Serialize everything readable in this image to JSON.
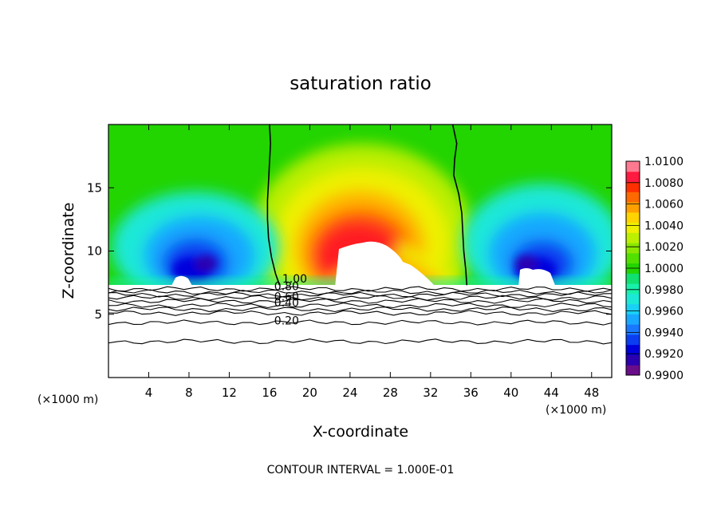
{
  "chart_data": {
    "type": "heatmap",
    "title": "saturation ratio",
    "xlabel": "X-coordinate",
    "ylabel": "Z-coordinate",
    "x_unit_left": "(×1000 m)",
    "x_unit_right": "(×1000 m)",
    "footer": "CONTOUR INTERVAL = 1.000E-01",
    "xlim": [
      0,
      50
    ],
    "ylim": [
      0,
      20
    ],
    "x_ticks": [
      4,
      8,
      12,
      16,
      20,
      24,
      28,
      32,
      36,
      40,
      44,
      48
    ],
    "y_ticks": [
      5,
      10,
      15
    ],
    "colorbar": {
      "min": 0.99,
      "max": 1.01,
      "step": 0.001,
      "labels": [
        "1.0100",
        "1.0080",
        "1.0060",
        "1.0040",
        "1.0020",
        "1.0000",
        "0.9980",
        "0.9960",
        "0.9940",
        "0.9920",
        "0.9900"
      ],
      "colors": [
        "#6a0d8a",
        "#2a00b0",
        "#0000dd",
        "#0a3ef0",
        "#1a78ff",
        "#19a8ff",
        "#19d0f5",
        "#1ce8d8",
        "#18f0aa",
        "#10e070",
        "#22d400",
        "#52e000",
        "#8ae800",
        "#bcf000",
        "#eef000",
        "#ffd400",
        "#ffa000",
        "#ff6a00",
        "#ff3000",
        "#ff1a40",
        "#ff7a90"
      ]
    },
    "contours": [
      {
        "label": "1.00",
        "label_x": 18.5,
        "label_y": 7.5,
        "line_x": [
          16.0,
          16.1,
          16.0,
          15.9,
          15.8,
          15.8,
          15.9,
          16.2,
          16.6,
          17.0
        ],
        "line_z": [
          20.0,
          18.5,
          17.0,
          15.5,
          14.0,
          12.5,
          11.0,
          9.5,
          8.2,
          7.3
        ]
      },
      {
        "label": "",
        "line_x": [
          34.2,
          34.6,
          34.4,
          34.3,
          34.8,
          35.1,
          35.2,
          35.3,
          35.5,
          35.6
        ],
        "line_z": [
          20.0,
          18.5,
          17.3,
          16.0,
          14.5,
          13.0,
          11.5,
          10.0,
          8.5,
          7.3
        ]
      },
      {
        "label": "0.80",
        "label_x": 17.7,
        "label_y": 6.9,
        "z": 7.0
      },
      {
        "label": "0.60",
        "label_x": 17.7,
        "label_y": 6.1,
        "z": 6.3
      },
      {
        "label": "0.40",
        "label_x": 17.7,
        "label_y": 5.6,
        "z": 5.7
      },
      {
        "label": "0.20",
        "label_x": 17.7,
        "label_y": 4.2,
        "z": 4.35
      },
      {
        "label": "",
        "z": 6.75
      },
      {
        "label": "",
        "z": 6.55
      },
      {
        "label": "",
        "z": 6.05
      },
      {
        "label": "",
        "z": 5.4
      },
      {
        "label": "",
        "z": 5.1
      },
      {
        "label": "",
        "z": 2.85
      }
    ]
  }
}
